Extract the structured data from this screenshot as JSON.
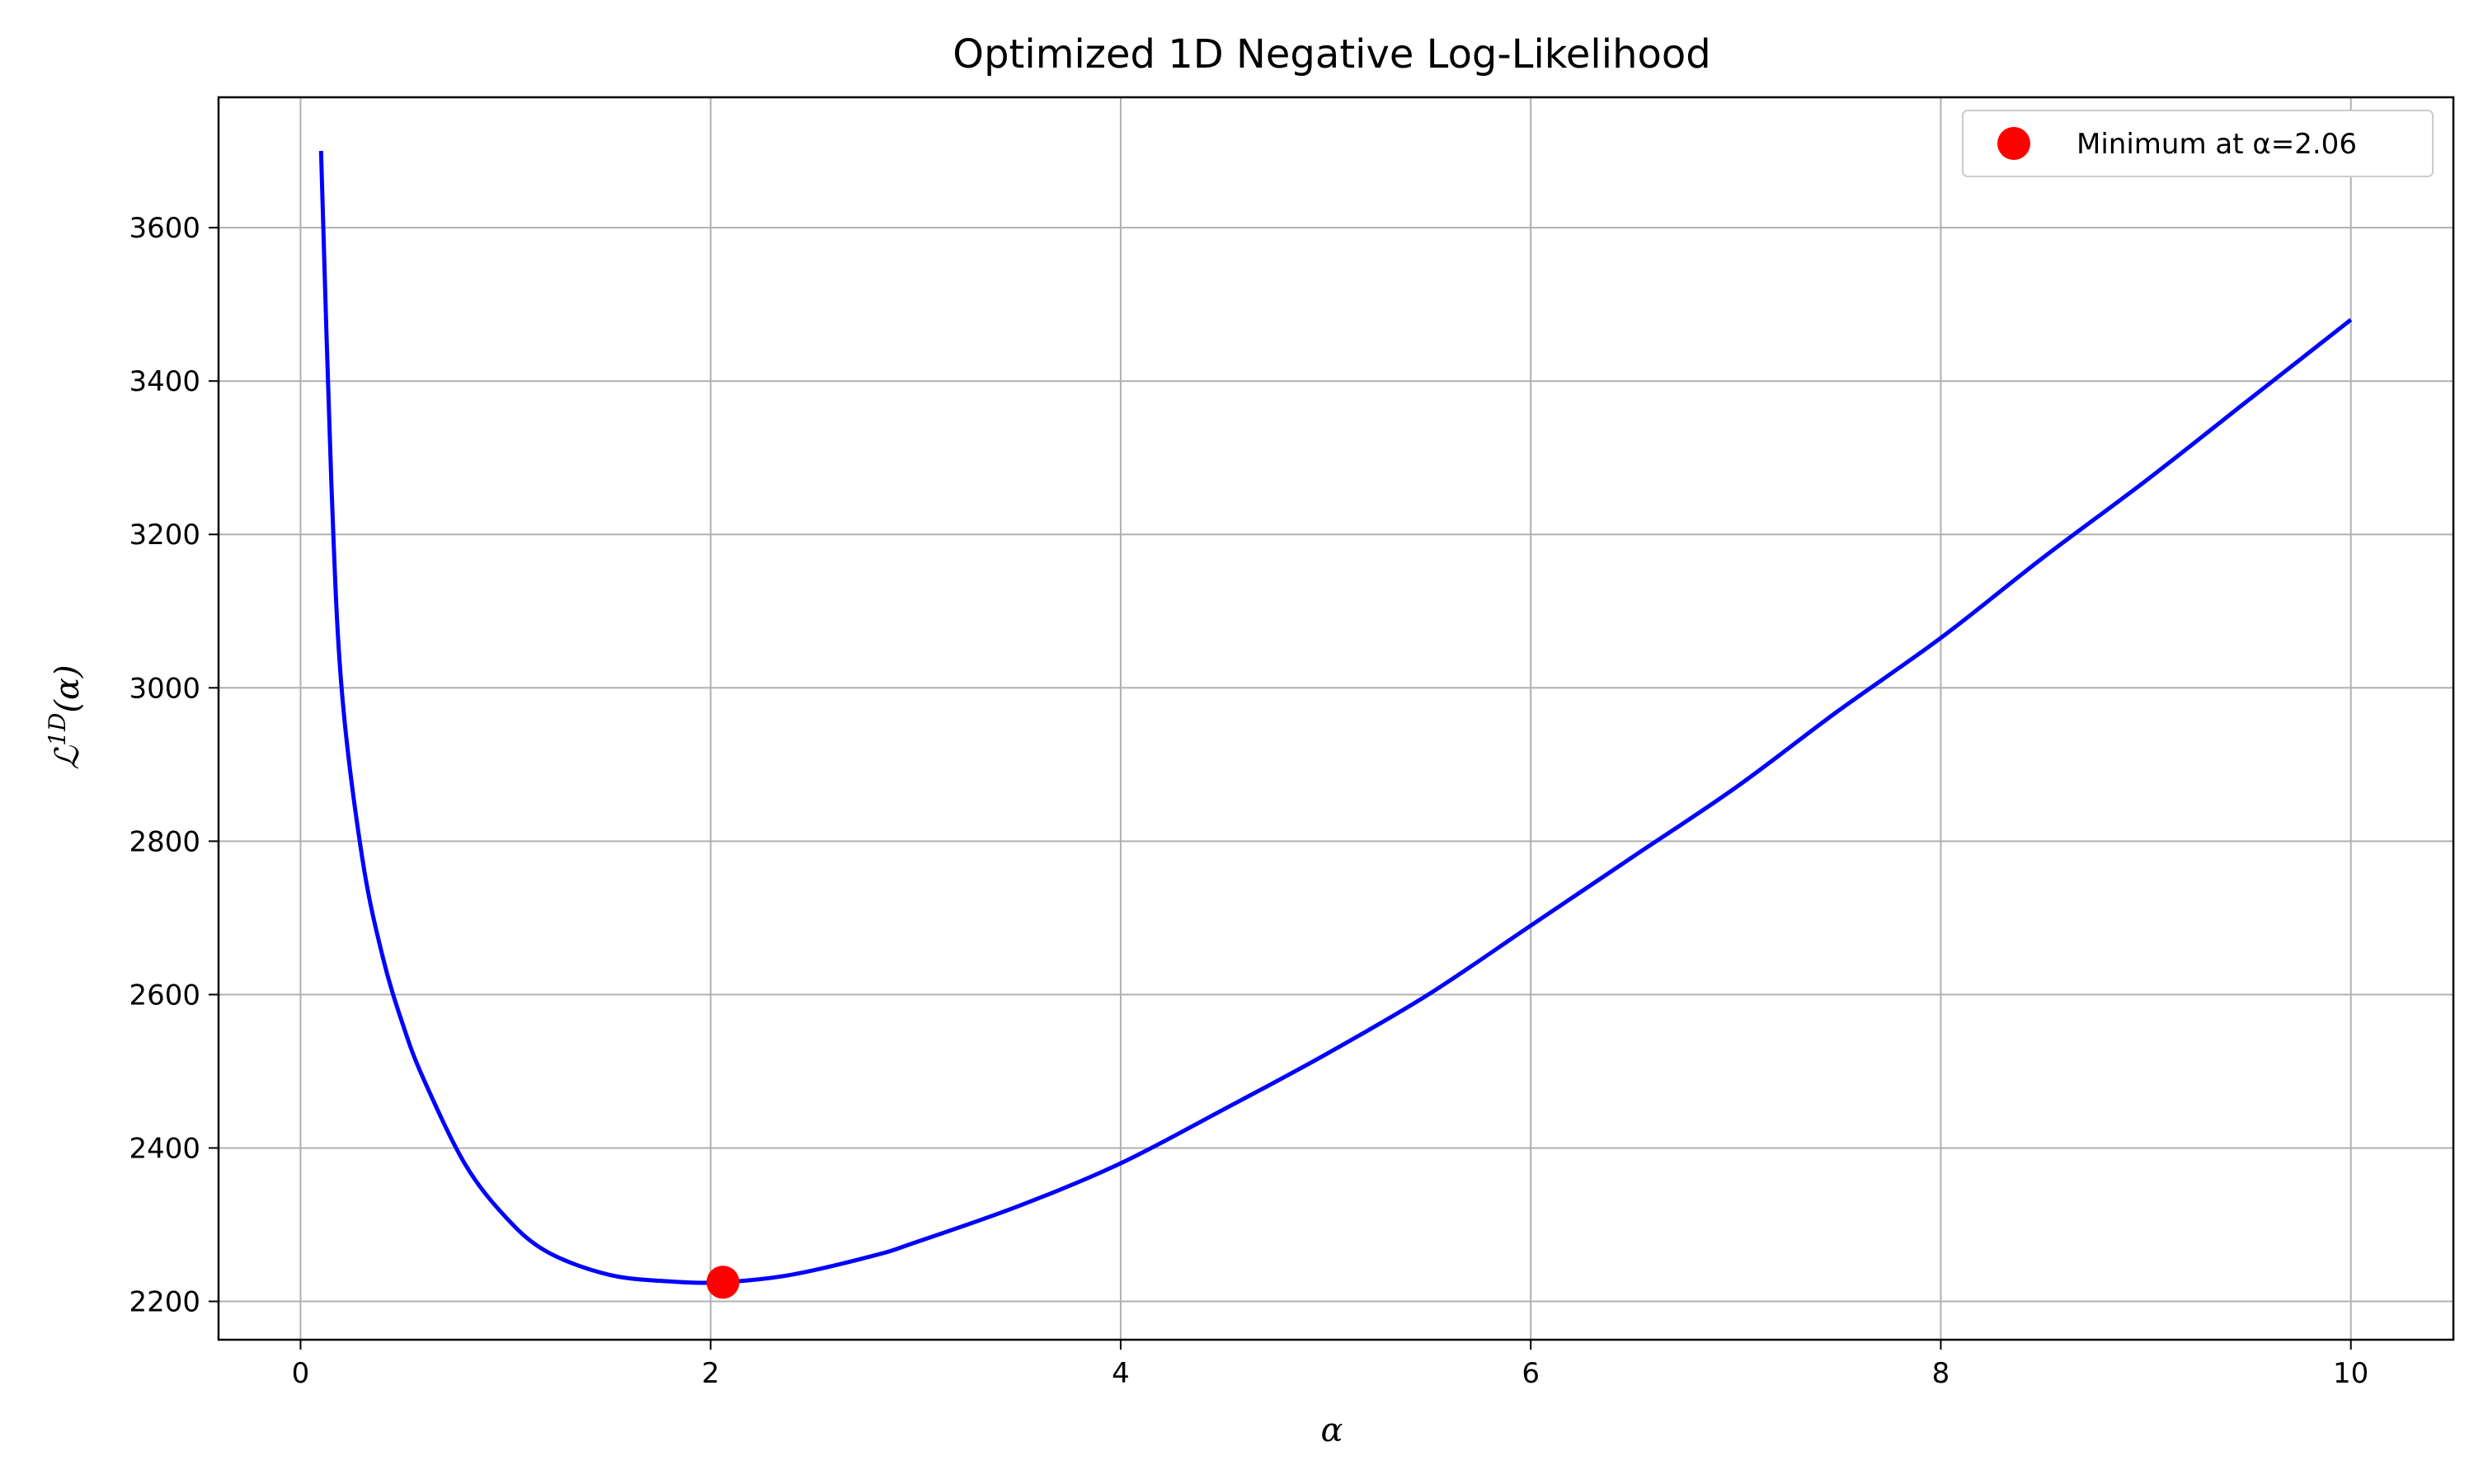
{
  "chart_data": {
    "type": "line",
    "title": "Optimized 1D Negative Log-Likelihood",
    "xlabel": "α",
    "ylabel_main": "ℒ",
    "ylabel_sup": "1D",
    "ylabel_arg": "(α)",
    "xlim": [
      -0.4,
      10.5
    ],
    "ylim": [
      2150,
      3770
    ],
    "xticks": [
      0,
      2,
      4,
      6,
      8,
      10
    ],
    "yticks": [
      2200,
      2400,
      2600,
      2800,
      3000,
      3200,
      3400,
      3600
    ],
    "grid": true,
    "legend_position": "top-right",
    "series": [
      {
        "color": "#0000ff",
        "x": [
          0.1,
          0.15,
          0.2,
          0.3,
          0.4,
          0.5,
          0.6,
          0.8,
          1.0,
          1.2,
          1.5,
          1.8,
          2.06,
          2.4,
          2.8,
          3.0,
          3.5,
          4.0,
          4.5,
          5.0,
          5.5,
          6.0,
          6.5,
          7.0,
          7.5,
          8.0,
          8.5,
          9.0,
          9.5,
          10.0
        ],
        "y": [
          3700,
          3270,
          3000,
          2780,
          2650,
          2560,
          2490,
          2380,
          2310,
          2265,
          2235,
          2226,
          2225,
          2235,
          2260,
          2277,
          2324,
          2380,
          2450,
          2522,
          2600,
          2690,
          2780,
          2870,
          2970,
          3065,
          3170,
          3270,
          3375,
          3480
        ]
      }
    ],
    "minimum_point": {
      "x": 2.06,
      "y": 2225,
      "color": "#ff0000",
      "label": "Minimum at α=2.06"
    }
  }
}
